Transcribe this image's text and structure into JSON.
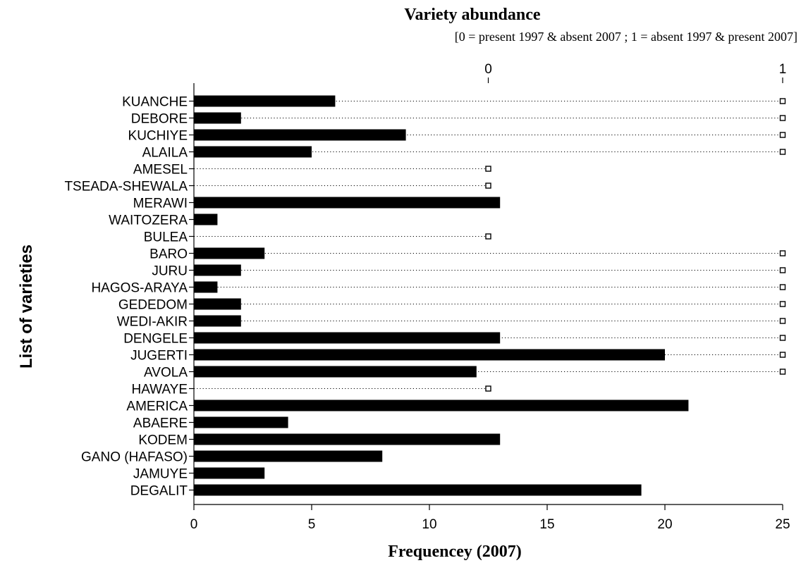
{
  "chart_data": {
    "type": "bar",
    "orientation": "horizontal",
    "top_title": "Variety abundance",
    "top_subtitle": "[0 = present 1997 & absent 2007 ;  1 = absent 1997 & present 2007]",
    "xlabel": "Frequencey (2007)",
    "ylabel": "List of varieties",
    "xlim": [
      0,
      25
    ],
    "x_ticks": [
      "0",
      "5",
      "10",
      "15",
      "20",
      "25"
    ],
    "x_tick_values": [
      0,
      5,
      10,
      15,
      20,
      25
    ],
    "top_axis_ticks": [
      "0",
      "1"
    ],
    "top_axis_tick_values": [
      0,
      1
    ],
    "grid": false,
    "categories": [
      "KUANCHE",
      "DEBORE",
      "KUCHIYE",
      "ALAILA",
      "AMESEL",
      "TSEADA-SHEWALA",
      "MERAWI",
      "WAITOZERA",
      "BULEA",
      "BARO",
      "JURU",
      "HAGOS-ARAYA",
      "GEDEDOM",
      "WEDI-AKIR",
      "DENGELE",
      "JUGERTI",
      "AVOLA",
      "HAWAYE",
      "AMERICA",
      "ABAERE",
      "KODEM",
      "GANO (HAFASO)",
      "JAMUYE",
      "DEGALIT"
    ],
    "series": [
      {
        "values": [
          6,
          2,
          9,
          5,
          0,
          0,
          13,
          1,
          0,
          3,
          2,
          1,
          2,
          2,
          13,
          20,
          12,
          0,
          21,
          4,
          13,
          8,
          3,
          19
        ],
        "color": "#000000",
        "axis": "bottom"
      },
      {
        "values": [
          1,
          1,
          1,
          1,
          0,
          0,
          null,
          null,
          0,
          1,
          1,
          1,
          1,
          1,
          1,
          1,
          1,
          0,
          null,
          null,
          null,
          null,
          null,
          null
        ],
        "axis": "top",
        "marker": "hollow-square",
        "line": "dotted",
        "color": "#000000"
      }
    ]
  }
}
